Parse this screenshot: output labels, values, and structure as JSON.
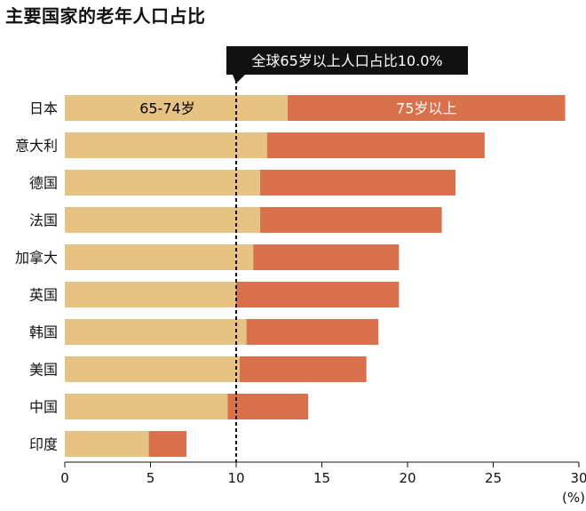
{
  "chart_data": {
    "type": "bar",
    "title": "主要国家的老年人口占比",
    "categories": [
      "日本",
      "意大利",
      "德国",
      "法国",
      "加拿大",
      "英国",
      "韩国",
      "美国",
      "中国",
      "印度"
    ],
    "series": [
      {
        "name": "65-74岁",
        "values": [
          13.0,
          11.8,
          11.4,
          11.4,
          11.0,
          10.0,
          10.6,
          10.2,
          9.5,
          4.9
        ]
      },
      {
        "name": "75岁以上",
        "values": [
          16.2,
          12.7,
          11.4,
          10.6,
          8.5,
          9.5,
          7.7,
          7.4,
          4.7,
          2.2
        ]
      }
    ],
    "stacked": true,
    "orientation": "horizontal",
    "xlim": [
      0,
      30
    ],
    "xticks": [
      "0",
      "5",
      "10",
      "15",
      "20",
      "25",
      "30"
    ],
    "xunit": "(%)",
    "reference_line": {
      "value": 10.0,
      "label": "全球65岁以上人口占比10.0%"
    },
    "colors": {
      "series1": "#e6c383",
      "series2": "#d9714c",
      "reference_box": "#111111"
    }
  }
}
